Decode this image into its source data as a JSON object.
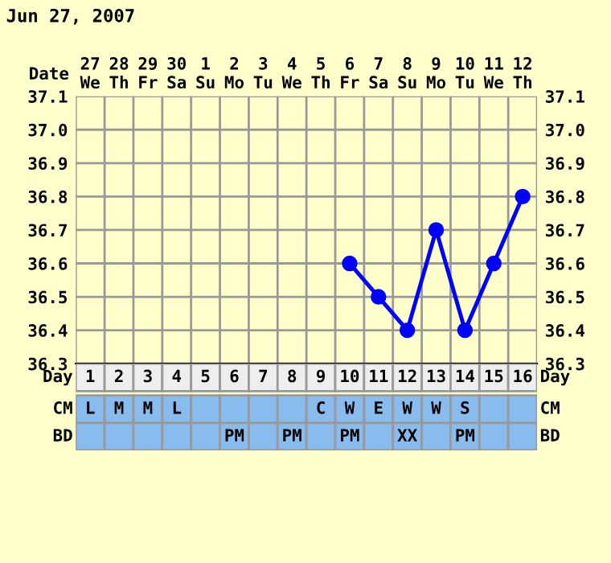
{
  "chart_data": [
    {
      "type": "line",
      "title": "Jun 27, 2007",
      "categories": [
        "27\nWe",
        "28\nTh",
        "29\nFr",
        "30\nSa",
        "1\nSu",
        "2\nMo",
        "3\nTu",
        "4\nWe",
        "5\nTh",
        "6\nFr",
        "7\nSa",
        "8\nSu",
        "9\nMo",
        "10\nTu",
        "11\nWe",
        "12\nTh"
      ],
      "series": [
        {
          "color": "#0000ff",
          "values": [
            null,
            null,
            null,
            null,
            null,
            null,
            null,
            null,
            null,
            36.6,
            36.5,
            36.4,
            36.7,
            36.4,
            36.6,
            36.8
          ]
        }
      ],
      "ylim": [
        36.3,
        37.1
      ],
      "yticks": [
        36.3,
        36.4,
        36.5,
        36.6,
        36.7,
        36.8,
        36.9,
        {
          "value": 37,
          "label": "37.0"
        },
        37.1
      ],
      "y2lim": [
        36.3,
        37.1
      ],
      "y2ticks": [
        36.3,
        36.4,
        36.5,
        36.6,
        36.7,
        36.8,
        36.9,
        {
          "value": 37,
          "label": "37.0"
        },
        37.1
      ],
      "grid": true,
      "marker": "circle",
      "line_style": "solid",
      "annotations": [
        "Date"
      ]
    },
    {
      "type": "heatmap",
      "categories": [
        "1",
        "2",
        "3",
        "4",
        "5",
        "6",
        "7",
        "8",
        "9",
        "10",
        "11",
        "12",
        "13",
        "14",
        "15",
        "16"
      ],
      "annotations": [
        "Day",
        "Day"
      ],
      "y_categories": [
        "CM",
        "BD"
      ],
      "y2_categories": [
        "CM",
        "BD"
      ],
      "cells": [
        [
          null,
          null,
          null,
          null,
          null,
          null,
          null,
          null,
          null,
          null,
          null,
          null,
          null,
          null,
          null,
          null
        ],
        [
          null,
          null,
          null,
          null,
          null,
          null,
          null,
          null,
          null,
          null,
          null,
          null,
          null,
          null,
          null,
          null
        ]
      ],
      "cell_labels": [
        [
          "L",
          "M",
          "M",
          "L",
          null,
          null,
          null,
          null,
          "C",
          "W",
          "E",
          "W",
          "W",
          "S",
          null,
          null
        ],
        [
          null,
          null,
          null,
          null,
          null,
          "PM",
          null,
          "PM",
          null,
          "PM",
          null,
          "XX",
          null,
          "PM",
          null,
          null
        ]
      ]
    }
  ]
}
